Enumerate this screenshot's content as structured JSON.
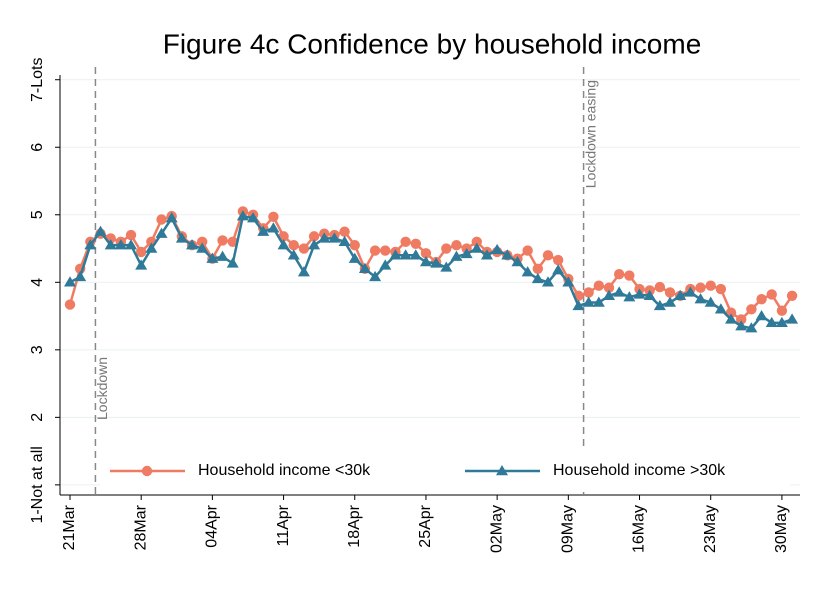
{
  "chart_data": {
    "type": "line",
    "title": "Figure 4c Confidence by household income",
    "categories": [
      "21Mar",
      null,
      null,
      null,
      null,
      null,
      null,
      "28Mar",
      null,
      null,
      null,
      null,
      null,
      null,
      "04Apr",
      null,
      null,
      null,
      null,
      null,
      null,
      "11Apr",
      null,
      null,
      null,
      null,
      null,
      null,
      "18Apr",
      null,
      null,
      null,
      null,
      null,
      null,
      "25Apr",
      null,
      null,
      null,
      null,
      null,
      null,
      "02May",
      null,
      null,
      null,
      null,
      null,
      null,
      "09May",
      null,
      null,
      null,
      null,
      null,
      null,
      "16May",
      null,
      null,
      null,
      null,
      null,
      null,
      "23May",
      null,
      null,
      null,
      null,
      null,
      null,
      "30May",
      null
    ],
    "series": [
      {
        "name": "Household income <30k",
        "color": "#ef7c62",
        "marker": "circle",
        "values": [
          3.67,
          4.2,
          4.6,
          4.72,
          4.65,
          4.6,
          4.7,
          4.45,
          4.6,
          4.93,
          4.98,
          4.68,
          4.55,
          4.6,
          4.35,
          4.62,
          4.6,
          5.05,
          5.0,
          4.8,
          4.97,
          4.68,
          4.55,
          4.5,
          4.68,
          4.72,
          4.7,
          4.75,
          4.55,
          4.2,
          4.47,
          4.47,
          4.45,
          4.6,
          4.57,
          4.43,
          4.3,
          4.5,
          4.55,
          4.5,
          4.6,
          4.45,
          4.45,
          4.4,
          4.35,
          4.47,
          4.2,
          4.4,
          4.33,
          4.05,
          3.8,
          3.85,
          3.95,
          3.92,
          4.12,
          4.1,
          3.9,
          3.88,
          3.93,
          3.85,
          3.8,
          3.9,
          3.92,
          3.95,
          3.9,
          3.55,
          3.45,
          3.6,
          3.75,
          3.82,
          3.58,
          3.8
        ]
      },
      {
        "name": "Household income >30k",
        "color": "#2f7a98",
        "marker": "triangle",
        "values": [
          4.0,
          4.08,
          4.55,
          4.75,
          4.55,
          4.55,
          4.55,
          4.25,
          4.5,
          4.72,
          4.95,
          4.65,
          4.55,
          4.5,
          4.35,
          4.38,
          4.28,
          4.98,
          4.95,
          4.75,
          4.8,
          4.55,
          4.4,
          4.15,
          4.55,
          4.65,
          4.65,
          4.6,
          4.35,
          4.2,
          4.08,
          4.25,
          4.4,
          4.4,
          4.4,
          4.3,
          4.28,
          4.22,
          4.38,
          4.42,
          4.5,
          4.4,
          4.48,
          4.4,
          4.3,
          4.15,
          4.05,
          4.0,
          4.18,
          4.0,
          3.65,
          3.7,
          3.7,
          3.8,
          3.85,
          3.78,
          3.82,
          3.8,
          3.65,
          3.7,
          3.8,
          3.85,
          3.75,
          3.7,
          3.6,
          3.45,
          3.35,
          3.32,
          3.5,
          3.4,
          3.4,
          3.45
        ]
      }
    ],
    "ylim": [
      0.85,
      7.07
    ],
    "yticks": [
      {
        "value": 1,
        "label": "1-Not at all"
      },
      2,
      3,
      4,
      5,
      6,
      {
        "value": 7,
        "label": "7-Lots"
      }
    ],
    "grid": true,
    "legend": "bottom",
    "annotations": [
      {
        "text": "Lockdown",
        "x": 2.5
      },
      {
        "text": "Lockdown easing",
        "x": 50.5
      }
    ]
  }
}
